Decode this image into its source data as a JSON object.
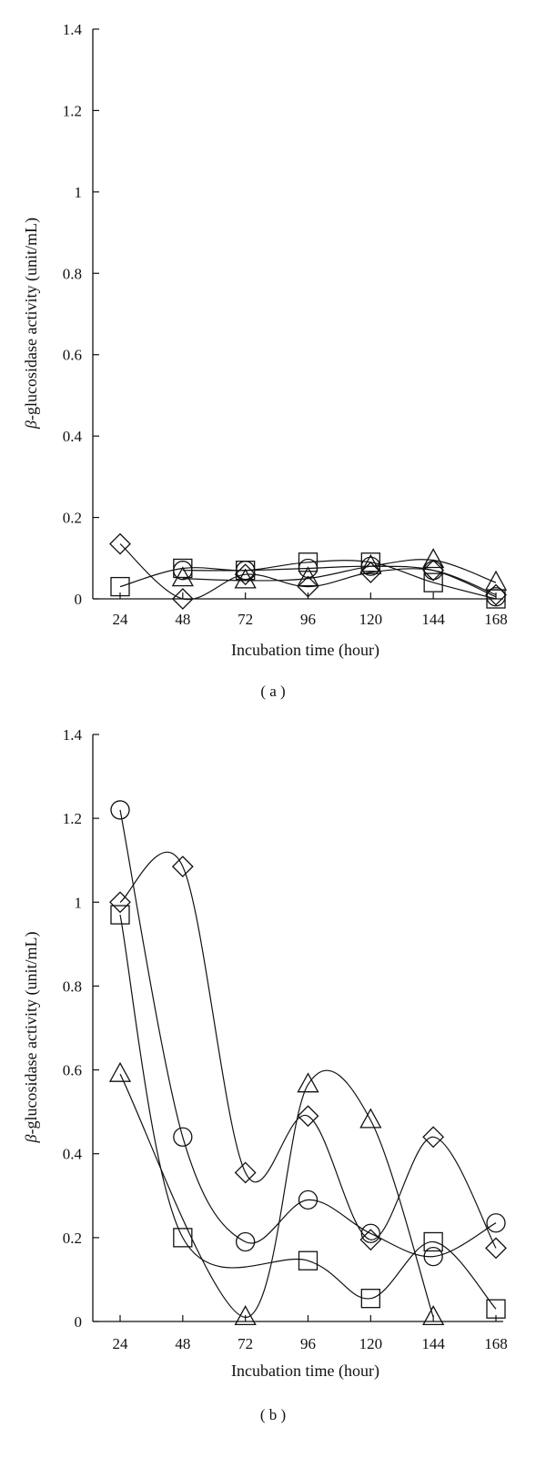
{
  "chart_data": [
    {
      "type": "scatter",
      "panel_label": "( a )",
      "title": "",
      "xlabel": "Incubation time (hour)",
      "ylabel": "β-glucosidase activity (unit/mL)",
      "ylabel_greek": "β",
      "ylabel_rest": "-glucosidase activity (unit/mL)",
      "x_ticks": [
        "24",
        "48",
        "72",
        "96",
        "120",
        "144",
        "168"
      ],
      "y_ticks": [
        "0",
        "0.2",
        "0.4",
        "0.6",
        "0.8",
        "1",
        "1.2",
        "1.4"
      ],
      "xlim": [
        24,
        168
      ],
      "ylim": [
        0,
        1.4
      ],
      "grid": false,
      "legend": "none",
      "series": [
        {
          "marker": "diamond",
          "x": [
            24,
            48,
            72,
            96,
            120,
            144,
            168
          ],
          "y": [
            0.135,
            0.0,
            0.06,
            0.03,
            0.065,
            0.07,
            0.01
          ]
        },
        {
          "marker": "circle",
          "x": [
            48,
            72,
            96,
            120,
            144,
            168
          ],
          "y": [
            0.07,
            0.07,
            0.075,
            0.08,
            0.07,
            0.005
          ]
        },
        {
          "marker": "square",
          "x": [
            24,
            48,
            72,
            96,
            120,
            144,
            168
          ],
          "y": [
            0.03,
            0.075,
            0.07,
            0.09,
            0.09,
            0.04,
            0.0
          ]
        },
        {
          "marker": "triangle",
          "x": [
            48,
            72,
            96,
            120,
            144,
            168
          ],
          "y": [
            0.05,
            0.045,
            0.05,
            0.08,
            0.095,
            0.04
          ]
        }
      ]
    },
    {
      "type": "scatter",
      "panel_label": "( b )",
      "title": "",
      "xlabel": "Incubation time (hour)",
      "ylabel": "β-glucosidase activity (unit/mL)",
      "ylabel_greek": "β",
      "ylabel_rest": "-glucosidase activity (unit/mL)",
      "x_ticks": [
        "24",
        "48",
        "72",
        "96",
        "120",
        "144",
        "168"
      ],
      "y_ticks": [
        "0",
        "0.2",
        "0.4",
        "0.6",
        "0.8",
        "1",
        "1.2",
        "1.4"
      ],
      "xlim": [
        24,
        168
      ],
      "ylim": [
        0,
        1.4
      ],
      "grid": false,
      "legend": "none",
      "series": [
        {
          "marker": "circle",
          "x": [
            24,
            48,
            72,
            96,
            120,
            144,
            168
          ],
          "y": [
            1.22,
            0.44,
            0.19,
            0.29,
            0.21,
            0.155,
            0.235
          ]
        },
        {
          "marker": "diamond",
          "x": [
            24,
            48,
            72,
            96,
            120,
            144,
            168
          ],
          "y": [
            1.0,
            1.085,
            0.355,
            0.49,
            0.195,
            0.44,
            0.175
          ]
        },
        {
          "marker": "square",
          "x": [
            24,
            48,
            72,
            96,
            120,
            144,
            168
          ],
          "y": [
            0.97,
            0.2,
            null,
            0.145,
            0.055,
            0.19,
            0.03
          ]
        },
        {
          "marker": "triangle",
          "x": [
            24,
            48,
            72,
            96,
            120,
            144,
            168
          ],
          "y": [
            0.59,
            null,
            0.01,
            0.565,
            0.48,
            0.01,
            null
          ]
        }
      ]
    }
  ]
}
